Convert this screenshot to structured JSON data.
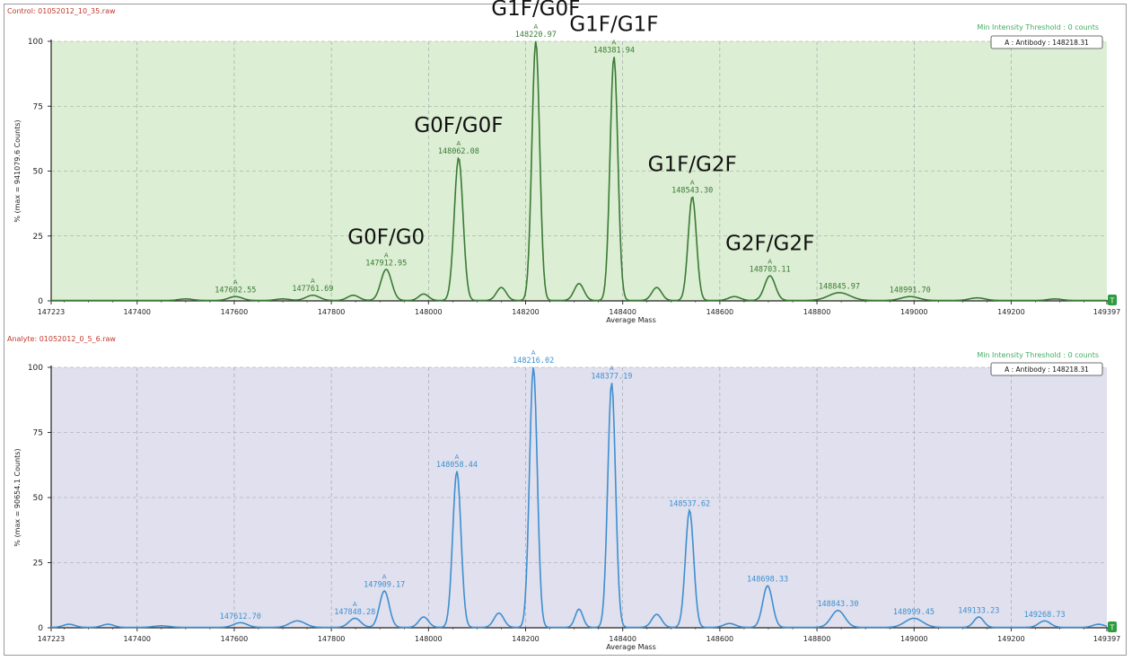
{
  "chart_data": [
    {
      "type": "line",
      "file_label": "Control: 01052012_10_35.raw",
      "threshold_label": "Min Intensity Threshold : 0 counts",
      "legend": "A : Antibody : 148218.31",
      "xlabel": "Average Mass",
      "ylabel": "% (max = 941079.6 Counts)",
      "xlim": [
        147223,
        149397
      ],
      "ylim": [
        0,
        100
      ],
      "xticks": [
        "147223",
        "147400",
        "147600",
        "147800",
        "148000",
        "148200",
        "148400",
        "148600",
        "148800",
        "149000",
        "149200",
        "149397"
      ],
      "yticks": [
        "0",
        "25",
        "50",
        "75",
        "100"
      ],
      "corner_marker": "T",
      "color": "#3a7a36",
      "background": "#dceed3",
      "peaks": [
        {
          "x": 147500,
          "y": 0.6,
          "w": 14
        },
        {
          "x": 147602.55,
          "y": 1.5,
          "w": 14,
          "label": "147602.55",
          "marker": "A"
        },
        {
          "x": 147700,
          "y": 0.6,
          "w": 14
        },
        {
          "x": 147761.69,
          "y": 2,
          "w": 14,
          "label": "147761.69",
          "marker": "A"
        },
        {
          "x": 147845,
          "y": 2,
          "w": 12
        },
        {
          "x": 147912.95,
          "y": 12,
          "w": 11,
          "label": "147912.95",
          "marker": "A"
        },
        {
          "x": 147990,
          "y": 2.5,
          "w": 10
        },
        {
          "x": 148062.08,
          "y": 55,
          "w": 9,
          "label": "148062.08",
          "marker": "A"
        },
        {
          "x": 148150,
          "y": 5,
          "w": 10
        },
        {
          "x": 148220.97,
          "y": 100,
          "w": 8,
          "label": "148220.97",
          "marker": "A"
        },
        {
          "x": 148310,
          "y": 6.5,
          "w": 10
        },
        {
          "x": 148381.94,
          "y": 94,
          "w": 8,
          "label": "148381.94",
          "marker": "A"
        },
        {
          "x": 148470,
          "y": 5,
          "w": 10
        },
        {
          "x": 148543.3,
          "y": 40,
          "w": 8.5,
          "label": "148543.30",
          "marker": "A"
        },
        {
          "x": 148630,
          "y": 1.5,
          "w": 12
        },
        {
          "x": 148703.11,
          "y": 9.5,
          "w": 11,
          "label": "148703.11",
          "marker": "A"
        },
        {
          "x": 148845.97,
          "y": 3,
          "w": 22,
          "label": "148845.97"
        },
        {
          "x": 148991.7,
          "y": 1.5,
          "w": 18,
          "label": "148991.70"
        },
        {
          "x": 149130,
          "y": 1,
          "w": 16
        },
        {
          "x": 149290,
          "y": 0.6,
          "w": 14
        }
      ],
      "annotations": [
        {
          "text": "G0F/G0",
          "x": 147912.95,
          "y": 12
        },
        {
          "text": "G0F/G0F",
          "x": 148062.08,
          "y": 55
        },
        {
          "text": "G1F/G0F",
          "x": 148220.97,
          "y": 100
        },
        {
          "text": "G1F/G1F",
          "x": 148381.94,
          "y": 94
        },
        {
          "text": "G1F/G2F",
          "x": 148543.3,
          "y": 40
        },
        {
          "text": "G2F/G2F",
          "x": 148703.11,
          "y": 9.5
        }
      ]
    },
    {
      "type": "line",
      "file_label": "Analyte: 01052012_0_5_6.raw",
      "threshold_label": "Min Intensity Threshold : 0 counts",
      "legend": "A : Antibody : 148218.31",
      "xlabel": "Average Mass",
      "ylabel": "% (max = 90654.1 Counts)",
      "xlim": [
        147223,
        149397
      ],
      "ylim": [
        0,
        100
      ],
      "xticks": [
        "147223",
        "147400",
        "147600",
        "147800",
        "148000",
        "148200",
        "148400",
        "148600",
        "148800",
        "149000",
        "149200",
        "149397"
      ],
      "yticks": [
        "0",
        "25",
        "50",
        "75",
        "100"
      ],
      "corner_marker": "T",
      "color": "#3e8fcf",
      "background": "#e0e0ee",
      "peaks": [
        {
          "x": 147260,
          "y": 1.2,
          "w": 12
        },
        {
          "x": 147340,
          "y": 1.2,
          "w": 12
        },
        {
          "x": 147450,
          "y": 0.6,
          "w": 16
        },
        {
          "x": 147612.7,
          "y": 1.8,
          "w": 14,
          "label": "147612.70"
        },
        {
          "x": 147730,
          "y": 2.5,
          "w": 16
        },
        {
          "x": 147848.28,
          "y": 3.5,
          "w": 12,
          "label": "147848.28",
          "marker": "A"
        },
        {
          "x": 147909.17,
          "y": 14,
          "w": 10,
          "label": "147909.17",
          "marker": "A"
        },
        {
          "x": 147990,
          "y": 4,
          "w": 10
        },
        {
          "x": 148058.44,
          "y": 60,
          "w": 8.5,
          "label": "148058.44",
          "marker": "A"
        },
        {
          "x": 148145,
          "y": 5.5,
          "w": 10
        },
        {
          "x": 148216.02,
          "y": 100,
          "w": 8,
          "label": "148216.02",
          "marker": "A"
        },
        {
          "x": 148310,
          "y": 7,
          "w": 8
        },
        {
          "x": 148377.19,
          "y": 94,
          "w": 8,
          "label": "148377.19",
          "marker": "A"
        },
        {
          "x": 148470,
          "y": 5,
          "w": 10
        },
        {
          "x": 148537.62,
          "y": 45,
          "w": 8.5,
          "label": "148537.62"
        },
        {
          "x": 148620,
          "y": 1.5,
          "w": 12
        },
        {
          "x": 148698.33,
          "y": 16,
          "w": 10,
          "label": "148698.33"
        },
        {
          "x": 148843.3,
          "y": 6.5,
          "w": 14,
          "label": "148843.30"
        },
        {
          "x": 148999.45,
          "y": 3.5,
          "w": 18,
          "label": "148999.45"
        },
        {
          "x": 149133.23,
          "y": 4,
          "w": 10,
          "label": "149133.23"
        },
        {
          "x": 149268.73,
          "y": 2.5,
          "w": 12,
          "label": "149268.73"
        },
        {
          "x": 149380,
          "y": 1.2,
          "w": 12
        }
      ],
      "annotations": []
    }
  ]
}
